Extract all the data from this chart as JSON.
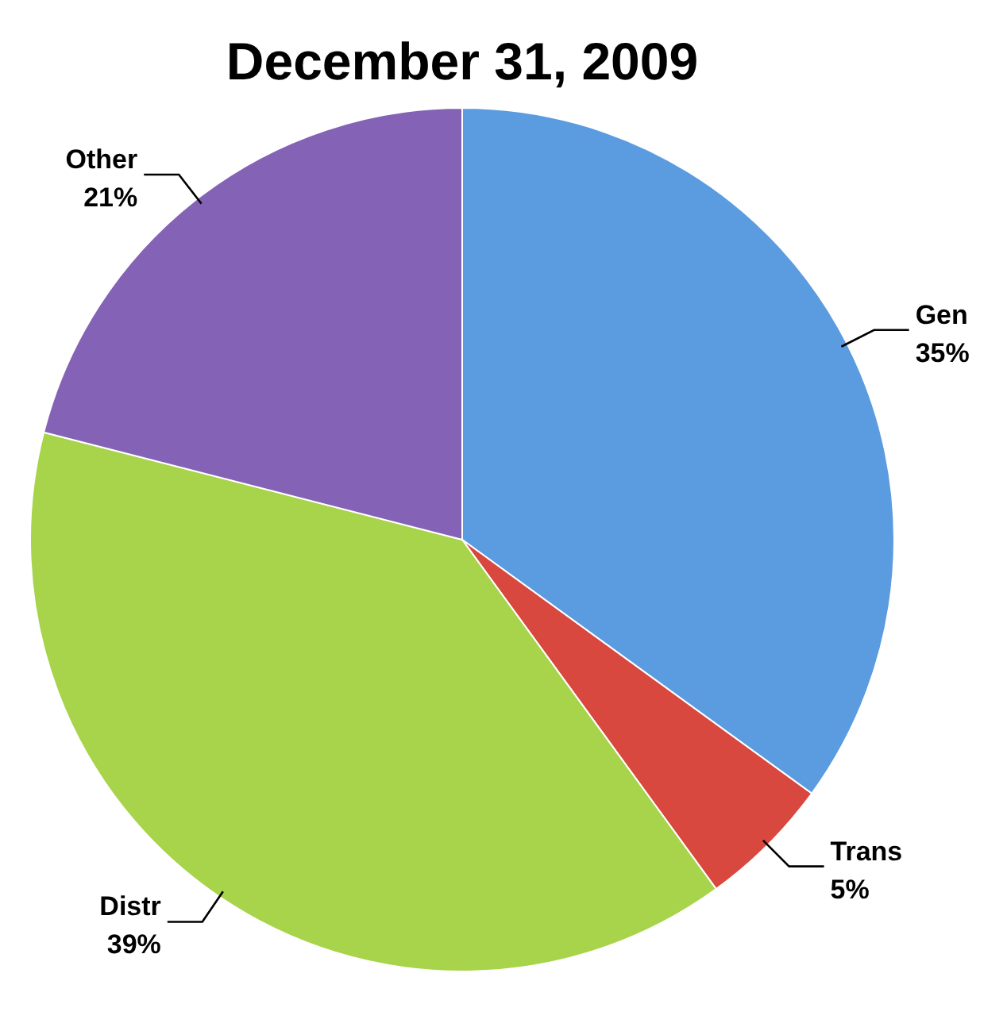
{
  "chart_data": {
    "type": "pie",
    "title": "December 31, 2009",
    "categories": [
      "Gen",
      "Trans",
      "Distr",
      "Other"
    ],
    "values": [
      35,
      5,
      39,
      21
    ],
    "colors": [
      "#5b9be0",
      "#d8483e",
      "#a7d44a",
      "#8462b6"
    ],
    "value_labels": [
      "35%",
      "5%",
      "39%",
      "21%"
    ]
  }
}
